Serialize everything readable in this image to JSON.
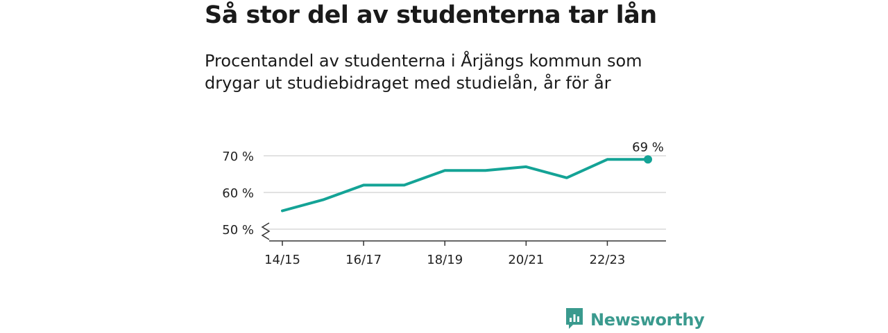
{
  "title": "Så stor del av studenterna tar lån",
  "subtitle": "Procentandel av studenterna i Årjängs kommun som drygar ut studiebidraget med studielån, år för år",
  "brand": {
    "name": "Newsworthy",
    "logo_icon": "newsworthy-logo-icon"
  },
  "colors": {
    "line": "#14a396",
    "grid": "#d9d9d9",
    "axis": "#333333",
    "brand": "#3a9a8e"
  },
  "chart_data": {
    "type": "line",
    "x": [
      "14/15",
      "15/16",
      "16/17",
      "17/18",
      "18/19",
      "19/20",
      "20/21",
      "21/22",
      "22/23",
      "23/24"
    ],
    "values": [
      55,
      58,
      62,
      62,
      66,
      66,
      67,
      64,
      69,
      69
    ],
    "x_tick_labels": [
      "14/15",
      "16/17",
      "18/19",
      "20/21",
      "22/23"
    ],
    "y_ticks": [
      50,
      60,
      70
    ],
    "y_tick_labels": [
      "50 %",
      "60 %",
      "70 %"
    ],
    "ylim": [
      50,
      70
    ],
    "y_axis_break": true,
    "grid": "horizontal",
    "last_value_label": "69 %"
  }
}
